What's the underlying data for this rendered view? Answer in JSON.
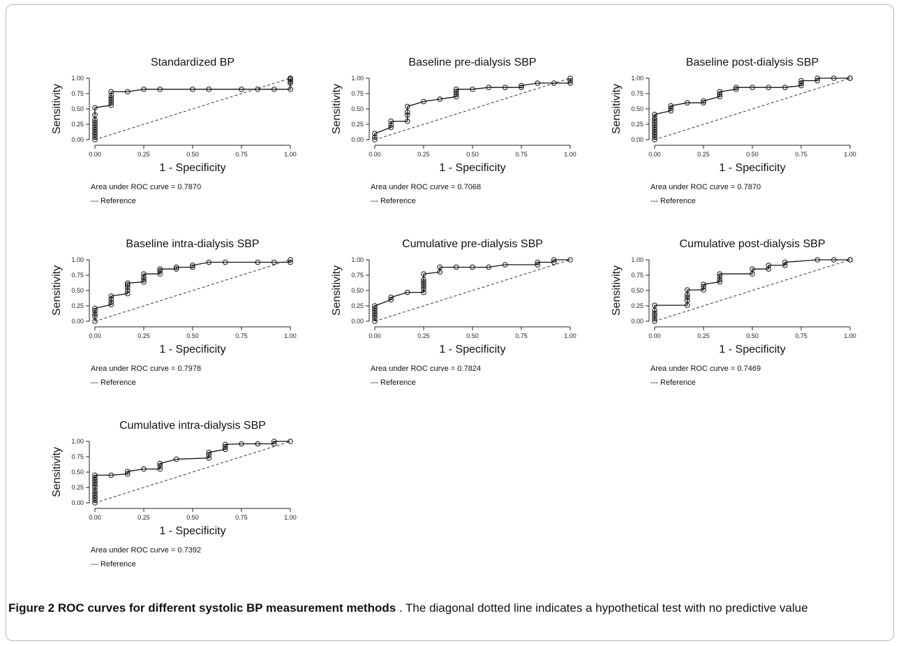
{
  "chart_data": [
    {
      "type": "line",
      "title": "Standardized BP",
      "xlabel": "1 - Specificity",
      "ylabel": "Sensitivity",
      "xlim": [
        0,
        1
      ],
      "ylim": [
        0,
        1
      ],
      "xticks": [
        "0.00",
        "0.25",
        "0.50",
        "0.75",
        "1.00"
      ],
      "yticks": [
        "0.00",
        "0.25",
        "0.50",
        "0.75",
        "1.00"
      ],
      "series": [
        {
          "x": [
            0,
            0,
            0,
            0,
            0,
            0,
            0,
            0,
            0,
            0,
            0,
            0.083,
            0.083,
            0.083,
            0.083,
            0.083,
            0.083,
            0.167,
            0.25,
            0.333,
            0.5,
            0.583,
            0.75,
            0.833,
            0.917,
            1,
            1,
            1,
            1,
            1,
            1
          ],
          "y": [
            0,
            0.04,
            0.08,
            0.12,
            0.16,
            0.2,
            0.24,
            0.28,
            0.32,
            0.4,
            0.52,
            0.56,
            0.6,
            0.64,
            0.68,
            0.72,
            0.78,
            0.78,
            0.82,
            0.82,
            0.82,
            0.82,
            0.82,
            0.82,
            0.82,
            0.82,
            0.92,
            0.95,
            0.98,
            1,
            1
          ]
        },
        {
          "x": [
            0,
            1
          ],
          "y": [
            0,
            1
          ]
        }
      ],
      "notes": [
        "Area under ROC curve = 0.7870",
        "--- Reference"
      ]
    },
    {
      "type": "line",
      "title": "Baseline pre-dialysis SBP",
      "xlabel": "1 - Specificity",
      "ylabel": "Sensitivity",
      "xlim": [
        0,
        1
      ],
      "ylim": [
        0,
        1
      ],
      "xticks": [
        "0.00",
        "0.25",
        "0.50",
        "0.75",
        "1.00"
      ],
      "yticks": [
        "0.00",
        "0.25",
        "0.50",
        "0.75",
        "1.00"
      ],
      "series": [
        {
          "x": [
            0,
            0,
            0,
            0.083,
            0.083,
            0.083,
            0.167,
            0.167,
            0.167,
            0.167,
            0.25,
            0.333,
            0.417,
            0.417,
            0.417,
            0.417,
            0.5,
            0.583,
            0.667,
            0.75,
            0.75,
            0.833,
            0.917,
            1,
            1,
            1
          ],
          "y": [
            0,
            0.04,
            0.1,
            0.2,
            0.24,
            0.3,
            0.3,
            0.4,
            0.45,
            0.54,
            0.62,
            0.66,
            0.7,
            0.74,
            0.78,
            0.82,
            0.82,
            0.85,
            0.85,
            0.85,
            0.88,
            0.92,
            0.92,
            0.92,
            0.96,
            1
          ]
        },
        {
          "x": [
            0,
            1
          ],
          "y": [
            0,
            1
          ]
        }
      ],
      "notes": [
        "Area under ROC curve = 0.7068",
        "--- Reference"
      ]
    },
    {
      "type": "line",
      "title": "Baseline post-dialysis SBP",
      "xlabel": "1 - Specificity",
      "ylabel": "Sensitivity",
      "xlim": [
        0,
        1
      ],
      "ylim": [
        0,
        1
      ],
      "xticks": [
        "0.00",
        "0.25",
        "0.50",
        "0.75",
        "1.00"
      ],
      "yticks": [
        "0.00",
        "0.25",
        "0.50",
        "0.75",
        "1.00"
      ],
      "series": [
        {
          "x": [
            0,
            0,
            0,
            0,
            0,
            0,
            0,
            0,
            0,
            0,
            0,
            0.083,
            0.083,
            0.083,
            0.167,
            0.25,
            0.25,
            0.333,
            0.333,
            0.333,
            0.417,
            0.417,
            0.5,
            0.583,
            0.667,
            0.75,
            0.75,
            0.75,
            0.833,
            0.833,
            0.917,
            1,
            1
          ],
          "y": [
            0,
            0.04,
            0.08,
            0.12,
            0.16,
            0.2,
            0.24,
            0.28,
            0.32,
            0.36,
            0.41,
            0.47,
            0.51,
            0.55,
            0.6,
            0.6,
            0.63,
            0.7,
            0.74,
            0.78,
            0.82,
            0.85,
            0.85,
            0.85,
            0.85,
            0.88,
            0.92,
            0.96,
            0.96,
            1,
            1,
            1,
            1
          ]
        },
        {
          "x": [
            0,
            1
          ],
          "y": [
            0,
            1
          ]
        }
      ],
      "notes": [
        "Area under ROC curve = 0.7870",
        "--- Reference"
      ]
    },
    {
      "type": "line",
      "title": "Baseline intra-dialysis SBP",
      "xlabel": "1 - Specificity",
      "ylabel": "Sensitivity",
      "xlim": [
        0,
        1
      ],
      "ylim": [
        0,
        1
      ],
      "xticks": [
        "0.00",
        "0.25",
        "0.50",
        "0.75",
        "1.00"
      ],
      "yticks": [
        "0.00",
        "0.25",
        "0.50",
        "0.75",
        "1.00"
      ],
      "series": [
        {
          "x": [
            0,
            0,
            0,
            0,
            0,
            0.083,
            0.083,
            0.083,
            0.083,
            0.167,
            0.167,
            0.167,
            0.167,
            0.167,
            0.25,
            0.25,
            0.25,
            0.25,
            0.333,
            0.333,
            0.333,
            0.417,
            0.417,
            0.5,
            0.5,
            0.583,
            0.667,
            0.833,
            0.917,
            1,
            1
          ],
          "y": [
            0,
            0.08,
            0.12,
            0.17,
            0.21,
            0.27,
            0.31,
            0.36,
            0.41,
            0.45,
            0.5,
            0.55,
            0.59,
            0.62,
            0.64,
            0.68,
            0.72,
            0.77,
            0.77,
            0.82,
            0.85,
            0.85,
            0.88,
            0.88,
            0.91,
            0.96,
            0.96,
            0.96,
            0.96,
            0.96,
            1
          ]
        },
        {
          "x": [
            0,
            1
          ],
          "y": [
            0,
            1
          ]
        }
      ],
      "notes": [
        "Area under ROC curve = 0.7978",
        "--- Reference"
      ]
    },
    {
      "type": "line",
      "title": "Cumulative pre-dialysis SBP",
      "xlabel": "1 - Specificity",
      "ylabel": "Sensitivity",
      "xlim": [
        0,
        1
      ],
      "ylim": [
        0,
        1
      ],
      "xticks": [
        "0.00",
        "0.25",
        "0.50",
        "0.75",
        "1.00"
      ],
      "yticks": [
        "0.00",
        "0.25",
        "0.50",
        "0.75",
        "1.00"
      ],
      "series": [
        {
          "x": [
            0,
            0,
            0,
            0,
            0,
            0,
            0,
            0.083,
            0.083,
            0.167,
            0.25,
            0.25,
            0.25,
            0.25,
            0.25,
            0.25,
            0.25,
            0.333,
            0.333,
            0.417,
            0.5,
            0.583,
            0.667,
            0.833,
            0.833,
            0.917,
            0.917,
            1
          ],
          "y": [
            0,
            0.05,
            0.09,
            0.13,
            0.17,
            0.21,
            0.25,
            0.35,
            0.39,
            0.47,
            0.47,
            0.52,
            0.56,
            0.6,
            0.64,
            0.68,
            0.77,
            0.8,
            0.88,
            0.88,
            0.88,
            0.88,
            0.92,
            0.92,
            0.96,
            0.96,
            1,
            1
          ]
        },
        {
          "x": [
            0,
            1
          ],
          "y": [
            0,
            1
          ]
        }
      ],
      "notes": [
        "Area under ROC curve = 0.7824",
        "--- Reference"
      ]
    },
    {
      "type": "line",
      "title": "Cumulative post-dialysis SBP",
      "xlabel": "1 - Specificity",
      "ylabel": "Sensitivity",
      "xlim": [
        0,
        1
      ],
      "ylim": [
        0,
        1
      ],
      "xticks": [
        "0.00",
        "0.25",
        "0.50",
        "0.75",
        "1.00"
      ],
      "yticks": [
        "0.00",
        "0.25",
        "0.50",
        "0.75",
        "1.00"
      ],
      "series": [
        {
          "x": [
            0,
            0,
            0,
            0,
            0,
            0,
            0.167,
            0.167,
            0.167,
            0.167,
            0.167,
            0.25,
            0.25,
            0.25,
            0.333,
            0.333,
            0.333,
            0.333,
            0.5,
            0.5,
            0.583,
            0.583,
            0.667,
            0.667,
            0.833,
            0.917,
            1,
            1
          ],
          "y": [
            0,
            0.04,
            0.09,
            0.13,
            0.18,
            0.26,
            0.26,
            0.34,
            0.39,
            0.43,
            0.51,
            0.51,
            0.56,
            0.6,
            0.64,
            0.68,
            0.73,
            0.77,
            0.77,
            0.85,
            0.85,
            0.91,
            0.91,
            0.96,
            1,
            1,
            1,
            1
          ]
        },
        {
          "x": [
            0,
            1
          ],
          "y": [
            0,
            1
          ]
        }
      ],
      "notes": [
        "Area under ROC curve = 0.7469",
        "--- Reference"
      ]
    },
    {
      "type": "line",
      "title": "Cumulative intra-dialysis SBP",
      "xlabel": "1 - Specificity",
      "ylabel": "Sensitivity",
      "xlim": [
        0,
        1
      ],
      "ylim": [
        0,
        1
      ],
      "xticks": [
        "0.00",
        "0.25",
        "0.50",
        "0.75",
        "1.00"
      ],
      "yticks": [
        "0.00",
        "0.25",
        "0.50",
        "0.75",
        "1.00"
      ],
      "series": [
        {
          "x": [
            0,
            0,
            0,
            0,
            0,
            0,
            0,
            0,
            0,
            0,
            0,
            0,
            0.083,
            0.167,
            0.167,
            0.25,
            0.333,
            0.333,
            0.333,
            0.417,
            0.583,
            0.583,
            0.583,
            0.667,
            0.667,
            0.667,
            0.75,
            0.833,
            0.917,
            0.917,
            1
          ],
          "y": [
            0,
            0.04,
            0.08,
            0.12,
            0.16,
            0.2,
            0.25,
            0.29,
            0.33,
            0.37,
            0.41,
            0.45,
            0.45,
            0.47,
            0.51,
            0.55,
            0.55,
            0.6,
            0.64,
            0.71,
            0.73,
            0.78,
            0.82,
            0.87,
            0.91,
            0.95,
            0.96,
            0.96,
            0.96,
            1,
            1
          ]
        },
        {
          "x": [
            0,
            1
          ],
          "y": [
            0,
            1
          ]
        }
      ],
      "notes": [
        "Area under ROC curve = 0.7392",
        "--- Reference"
      ]
    }
  ],
  "caption": {
    "label": "Figure 2 ROC curves for different systolic BP measurement methods",
    "text": " . The diagonal dotted line indicates a hypothetical test with no predictive value"
  }
}
